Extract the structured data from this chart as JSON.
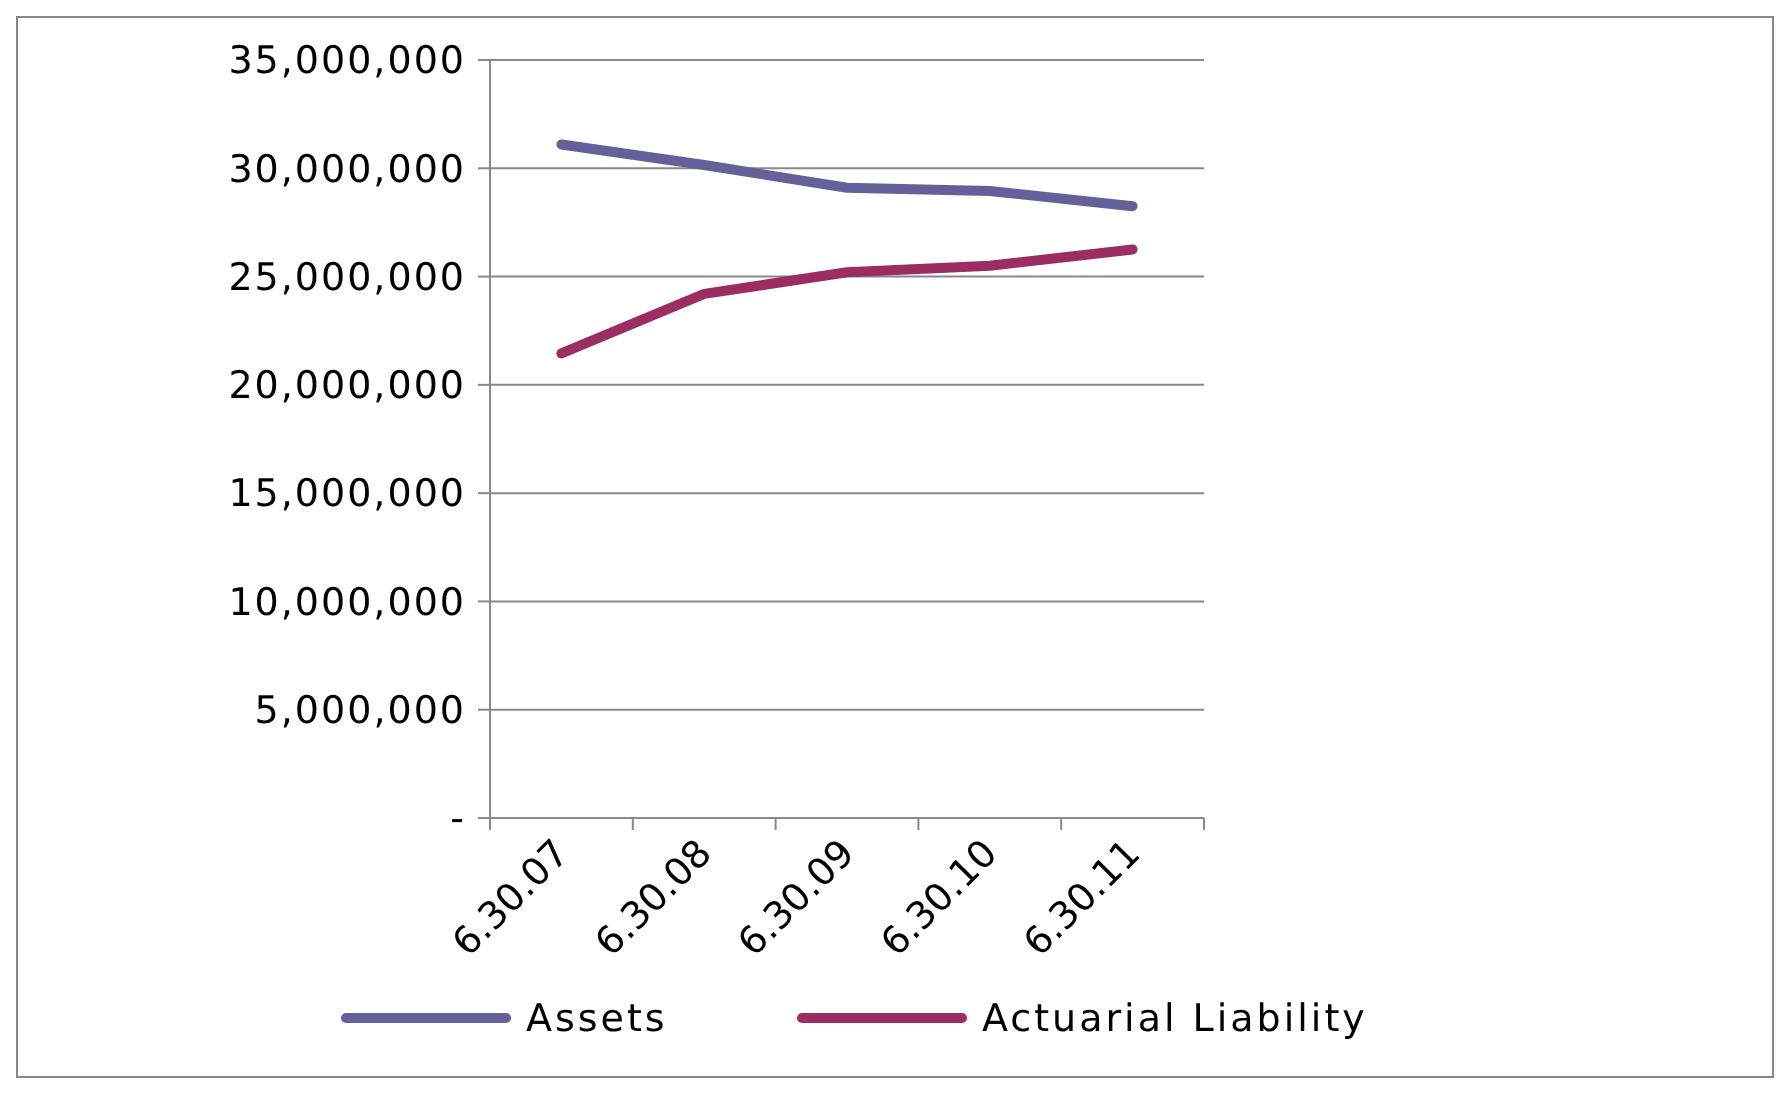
{
  "chart_data": {
    "type": "line",
    "categories": [
      "6.30.07",
      "6.30.08",
      "6.30.09",
      "6.30.10",
      "6.30.11"
    ],
    "series": [
      {
        "name": "Assets",
        "color": "#64609a",
        "values": [
          31100000,
          30150000,
          29100000,
          28950000,
          28250000
        ]
      },
      {
        "name": "Actuarial Liability",
        "color": "#9b2d60",
        "values": [
          21450000,
          24200000,
          25200000,
          25500000,
          26250000
        ]
      }
    ],
    "ylim": [
      0,
      35000000
    ],
    "yticks": [
      {
        "value": 0,
        "label": "-"
      },
      {
        "value": 5000000,
        "label": "5,000,000"
      },
      {
        "value": 10000000,
        "label": "10,000,000"
      },
      {
        "value": 15000000,
        "label": "15,000,000"
      },
      {
        "value": 20000000,
        "label": "20,000,000"
      },
      {
        "value": 25000000,
        "label": "25,000,000"
      },
      {
        "value": 30000000,
        "label": "30,000,000"
      },
      {
        "value": 35000000,
        "label": "35,000,000"
      }
    ],
    "grid": "y",
    "legend": "bottom",
    "marker": "none",
    "line_style": "solid"
  }
}
